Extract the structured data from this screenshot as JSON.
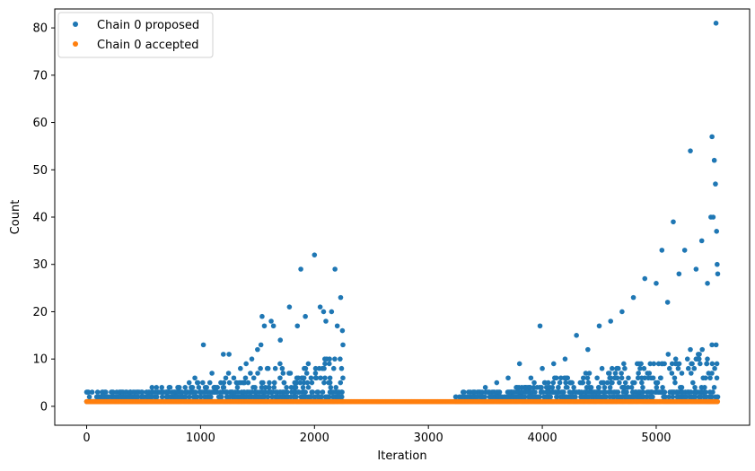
{
  "chart_data": {
    "type": "scatter",
    "xlabel": "Iteration",
    "ylabel": "Count",
    "xlim": [
      -280,
      5820
    ],
    "ylim": [
      -4,
      84
    ],
    "x_ticks": [
      0,
      1000,
      2000,
      3000,
      4000,
      5000
    ],
    "y_ticks": [
      0,
      10,
      20,
      30,
      40,
      50,
      60,
      70,
      80
    ],
    "grid": false,
    "legend_position": "top-left",
    "series": [
      {
        "name": "Chain 0 proposed",
        "color": "#1f77b4",
        "segments": [
          [
            0,
            2250
          ],
          [
            3240,
            5540
          ]
        ],
        "points": [
          {
            "x": 0,
            "y": 1
          },
          {
            "x": 500,
            "y": 2
          },
          {
            "x": 600,
            "y": 3
          },
          {
            "x": 700,
            "y": 3
          },
          {
            "x": 800,
            "y": 4
          },
          {
            "x": 900,
            "y": 5
          },
          {
            "x": 950,
            "y": 6
          },
          {
            "x": 1025,
            "y": 13
          },
          {
            "x": 1100,
            "y": 7
          },
          {
            "x": 1200,
            "y": 11
          },
          {
            "x": 1250,
            "y": 11
          },
          {
            "x": 1350,
            "y": 8
          },
          {
            "x": 1400,
            "y": 9
          },
          {
            "x": 1450,
            "y": 10
          },
          {
            "x": 1500,
            "y": 12
          },
          {
            "x": 1530,
            "y": 13
          },
          {
            "x": 1540,
            "y": 19
          },
          {
            "x": 1560,
            "y": 17
          },
          {
            "x": 1620,
            "y": 18
          },
          {
            "x": 1640,
            "y": 17
          },
          {
            "x": 1700,
            "y": 14
          },
          {
            "x": 1780,
            "y": 21
          },
          {
            "x": 1850,
            "y": 17
          },
          {
            "x": 1880,
            "y": 29
          },
          {
            "x": 1920,
            "y": 19
          },
          {
            "x": 2000,
            "y": 32
          },
          {
            "x": 2050,
            "y": 21
          },
          {
            "x": 2080,
            "y": 20
          },
          {
            "x": 2100,
            "y": 18
          },
          {
            "x": 2150,
            "y": 20
          },
          {
            "x": 2180,
            "y": 29
          },
          {
            "x": 2200,
            "y": 17
          },
          {
            "x": 2230,
            "y": 23
          },
          {
            "x": 2245,
            "y": 16
          },
          {
            "x": 2250,
            "y": 13
          },
          {
            "x": 3240,
            "y": 2
          },
          {
            "x": 3300,
            "y": 2
          },
          {
            "x": 3400,
            "y": 3
          },
          {
            "x": 3500,
            "y": 4
          },
          {
            "x": 3600,
            "y": 5
          },
          {
            "x": 3700,
            "y": 6
          },
          {
            "x": 3800,
            "y": 9
          },
          {
            "x": 3900,
            "y": 6
          },
          {
            "x": 3980,
            "y": 17
          },
          {
            "x": 4000,
            "y": 8
          },
          {
            "x": 4100,
            "y": 9
          },
          {
            "x": 4200,
            "y": 10
          },
          {
            "x": 4300,
            "y": 15
          },
          {
            "x": 4400,
            "y": 12
          },
          {
            "x": 4500,
            "y": 17
          },
          {
            "x": 4600,
            "y": 18
          },
          {
            "x": 4700,
            "y": 20
          },
          {
            "x": 4800,
            "y": 23
          },
          {
            "x": 4900,
            "y": 27
          },
          {
            "x": 5000,
            "y": 26
          },
          {
            "x": 5050,
            "y": 33
          },
          {
            "x": 5100,
            "y": 22
          },
          {
            "x": 5150,
            "y": 39
          },
          {
            "x": 5200,
            "y": 28
          },
          {
            "x": 5250,
            "y": 33
          },
          {
            "x": 5300,
            "y": 54
          },
          {
            "x": 5350,
            "y": 29
          },
          {
            "x": 5400,
            "y": 35
          },
          {
            "x": 5450,
            "y": 26
          },
          {
            "x": 5480,
            "y": 40
          },
          {
            "x": 5490,
            "y": 57
          },
          {
            "x": 5500,
            "y": 40
          },
          {
            "x": 5510,
            "y": 52
          },
          {
            "x": 5520,
            "y": 47
          },
          {
            "x": 5525,
            "y": 81
          },
          {
            "x": 5530,
            "y": 37
          },
          {
            "x": 5535,
            "y": 30
          },
          {
            "x": 5540,
            "y": 28
          }
        ]
      },
      {
        "name": "Chain 0 accepted",
        "color": "#ff7f0e",
        "segments": [
          [
            0,
            5540
          ]
        ],
        "points": [
          {
            "x": 0,
            "y": 1
          },
          {
            "x": 1000,
            "y": 1
          },
          {
            "x": 2000,
            "y": 1
          },
          {
            "x": 3000,
            "y": 1
          },
          {
            "x": 4000,
            "y": 1
          },
          {
            "x": 5000,
            "y": 1
          },
          {
            "x": 5540,
            "y": 1
          }
        ]
      }
    ]
  }
}
